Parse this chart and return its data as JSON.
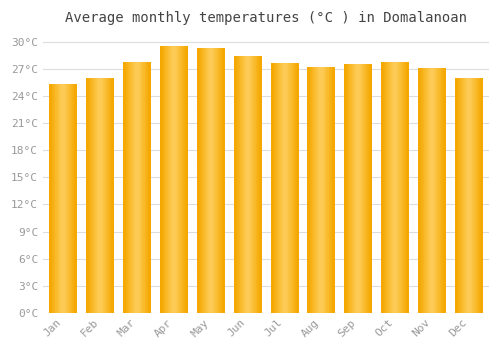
{
  "months": [
    "Jan",
    "Feb",
    "Mar",
    "Apr",
    "May",
    "Jun",
    "Jul",
    "Aug",
    "Sep",
    "Oct",
    "Nov",
    "Dec"
  ],
  "temperatures": [
    25.3,
    26.0,
    27.8,
    29.6,
    29.4,
    28.5,
    27.7,
    27.2,
    27.6,
    27.8,
    27.1,
    26.0
  ],
  "bar_color_center": "#FFD060",
  "bar_color_edge": "#F5A800",
  "title": "Average monthly temperatures (°C ) in Domalanoan",
  "ylim": [
    0,
    31
  ],
  "ytick_step": 3,
  "background_color": "#FFFFFF",
  "plot_bg_color": "#FFFFFF",
  "grid_color": "#DDDDDD",
  "title_fontsize": 10,
  "tick_fontsize": 8,
  "font_family": "monospace",
  "tick_color": "#999999",
  "bar_width": 0.75
}
